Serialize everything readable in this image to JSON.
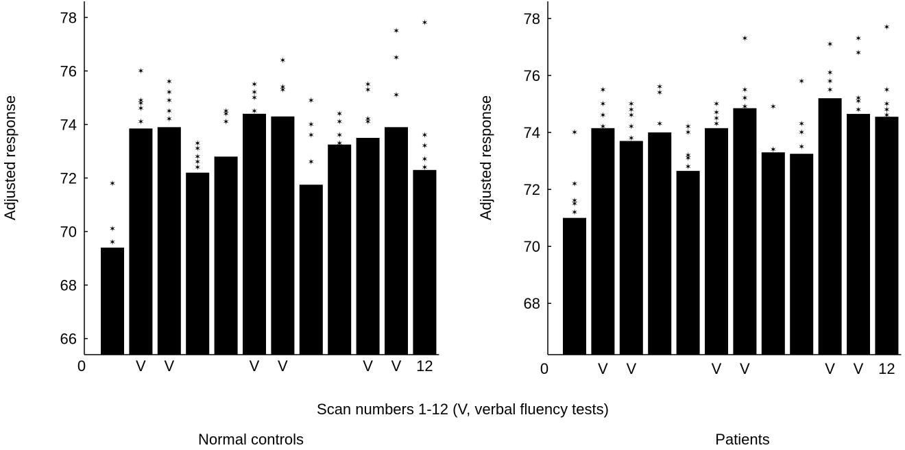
{
  "figure_caption": "Scan numbers 1-12 (V, verbal fluency tests)",
  "chart_data": [
    {
      "type": "bar",
      "subtitle": "Normal controls",
      "ylabel": "Adjusted response",
      "ylim": [
        65.4,
        78.6
      ],
      "yticks": [
        66,
        68,
        70,
        72,
        74,
        76,
        78
      ],
      "x_origin_label": "0",
      "categories": [
        "",
        "V",
        "V",
        "",
        "",
        "V",
        "V",
        "",
        "",
        "V",
        "V",
        "12"
      ],
      "values": [
        69.4,
        73.85,
        73.9,
        72.2,
        72.8,
        74.4,
        74.3,
        71.75,
        73.25,
        73.5,
        73.9,
        72.3
      ],
      "points": [
        [
          69.6,
          70.1,
          71.8
        ],
        [
          74.1,
          74.6,
          74.8,
          74.9,
          76.0
        ],
        [
          74.2,
          74.5,
          74.9,
          75.2,
          75.6
        ],
        [
          72.4,
          72.6,
          72.8,
          73.1,
          73.3
        ],
        [
          74.1,
          74.4,
          74.5
        ],
        [
          74.5,
          75.0,
          75.2,
          75.5
        ],
        [
          75.3,
          75.4,
          76.4
        ],
        [
          72.6,
          73.6,
          74.0,
          74.9
        ],
        [
          73.3,
          73.6,
          74.1,
          74.4
        ],
        [
          74.1,
          74.2,
          75.3,
          75.5
        ],
        [
          75.1,
          76.5,
          77.5
        ],
        [
          72.4,
          72.7,
          73.2,
          73.6,
          77.8
        ]
      ]
    },
    {
      "type": "bar",
      "subtitle": "Patients",
      "ylabel": "Adjusted response",
      "ylim": [
        66.2,
        78.6
      ],
      "yticks": [
        68,
        70,
        72,
        74,
        76,
        78
      ],
      "x_origin_label": "0",
      "categories": [
        "",
        "V",
        "V",
        "",
        "",
        "V",
        "V",
        "",
        "",
        "V",
        "V",
        "12"
      ],
      "values": [
        71.0,
        74.15,
        73.7,
        74.0,
        72.65,
        74.15,
        74.85,
        73.3,
        73.25,
        75.2,
        74.65,
        74.55
      ],
      "points": [
        [
          71.2,
          71.5,
          71.6,
          72.2,
          74.0
        ],
        [
          74.2,
          74.6,
          75.0,
          75.5
        ],
        [
          73.8,
          74.2,
          74.6,
          74.8,
          75.0
        ],
        [
          74.3,
          75.4,
          75.6
        ],
        [
          72.8,
          73.1,
          73.2,
          74.0,
          74.2
        ],
        [
          74.3,
          74.5,
          74.7,
          75.0
        ],
        [
          74.9,
          75.2,
          75.5,
          77.3
        ],
        [
          73.4,
          74.9
        ],
        [
          73.5,
          74.0,
          74.3,
          75.8
        ],
        [
          75.5,
          75.8,
          76.1,
          77.1
        ],
        [
          74.8,
          75.1,
          75.2,
          76.8,
          77.3
        ],
        [
          74.6,
          74.8,
          75.0,
          75.5,
          77.7
        ]
      ]
    }
  ]
}
